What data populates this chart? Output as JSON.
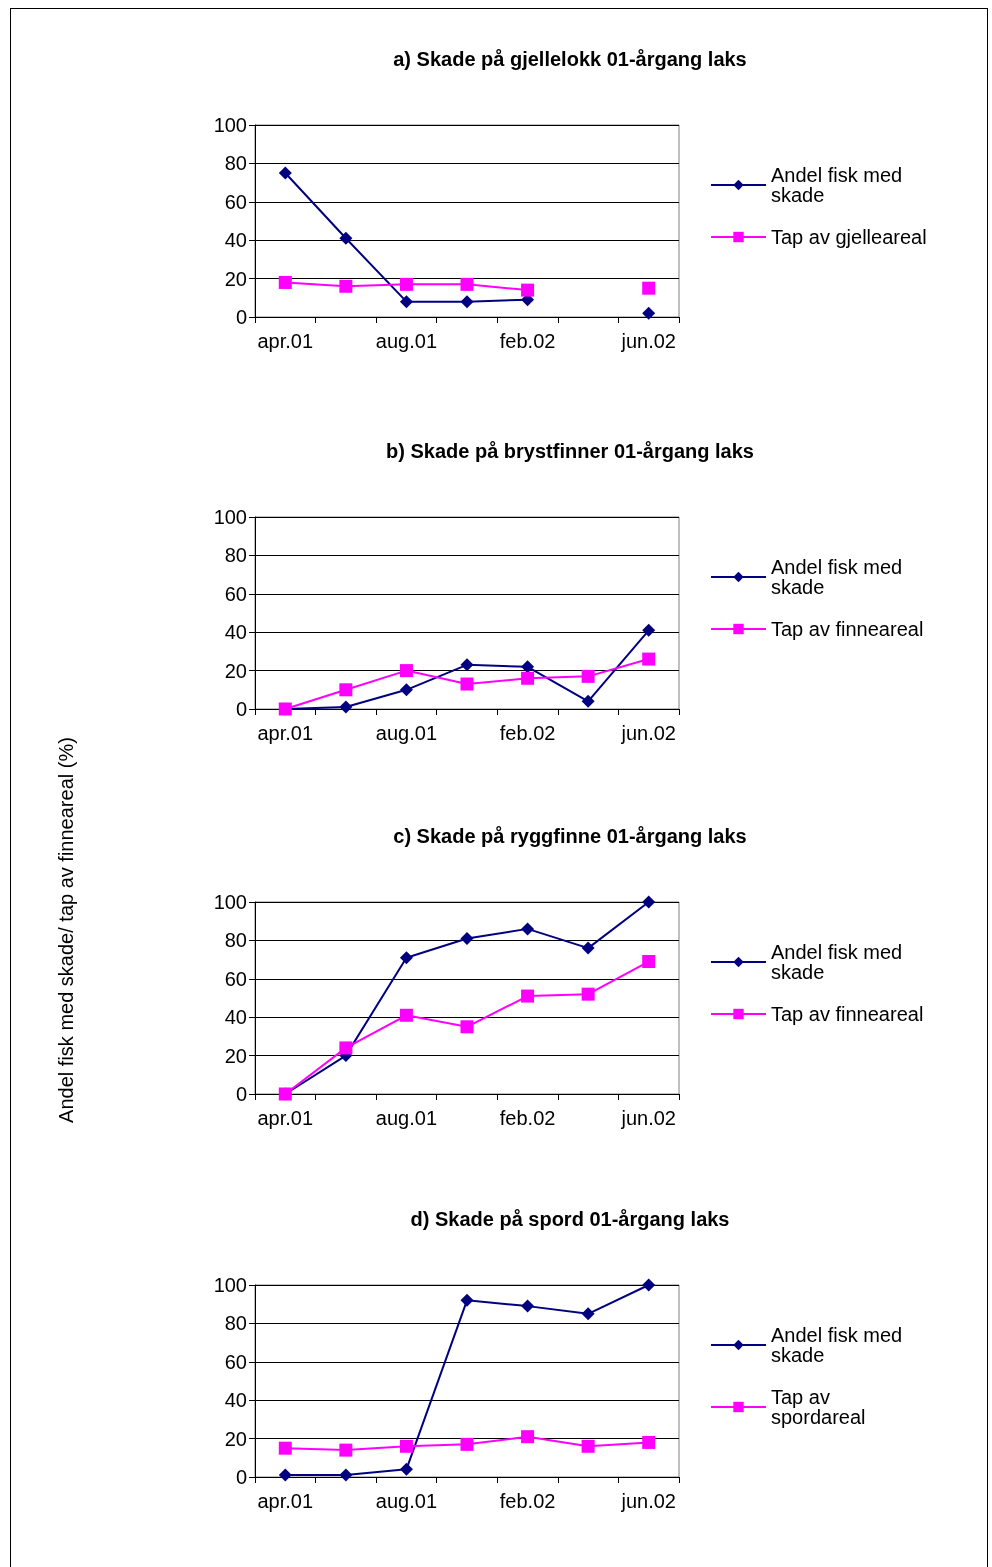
{
  "chart_data": [
    {
      "type": "line",
      "title": "a) Skade på gjellelokk 01-årgang laks",
      "categories": [
        "apr.01",
        null,
        "aug.01",
        null,
        "feb.02",
        null,
        "jun.02"
      ],
      "ylim": [
        0,
        100
      ],
      "yticks": [
        0,
        20,
        40,
        60,
        80,
        100
      ],
      "grid": "y",
      "legend": "right",
      "line_style": "solid",
      "series": [
        {
          "name": "Andel fisk med skade",
          "color": "#000080",
          "marker": "diamond",
          "values": [
            75,
            41,
            8,
            8,
            9,
            null,
            2
          ]
        },
        {
          "name": "Tap av gjelleareal",
          "color": "#ff00ff",
          "marker": "square",
          "values": [
            18,
            16,
            17,
            17,
            14,
            null,
            15
          ]
        }
      ]
    },
    {
      "type": "line",
      "title": "b) Skade på brystfinner 01-årgang laks",
      "categories": [
        "apr.01",
        null,
        "aug.01",
        null,
        "feb.02",
        null,
        "jun.02"
      ],
      "ylim": [
        0,
        100
      ],
      "yticks": [
        0,
        20,
        40,
        60,
        80,
        100
      ],
      "grid": "y",
      "legend": "right",
      "line_style": "solid",
      "series": [
        {
          "name": "Andel fisk med skade",
          "color": "#000080",
          "marker": "diamond",
          "values": [
            0,
            1,
            10,
            23,
            22,
            4,
            41
          ]
        },
        {
          "name": "Tap av finneareal",
          "color": "#ff00ff",
          "marker": "square",
          "values": [
            0,
            10,
            20,
            13,
            16,
            17,
            26
          ]
        }
      ]
    },
    {
      "type": "line",
      "title": "c) Skade på ryggfinne 01-årgang laks",
      "ylabel": "Andel fisk med skade/ tap av finneareal (%)",
      "categories": [
        "apr.01",
        null,
        "aug.01",
        null,
        "feb.02",
        null,
        "jun.02"
      ],
      "ylim": [
        0,
        100
      ],
      "yticks": [
        0,
        20,
        40,
        60,
        80,
        100
      ],
      "grid": "y",
      "legend": "right",
      "line_style": "solid",
      "series": [
        {
          "name": "Andel fisk med skade",
          "color": "#000080",
          "marker": "diamond",
          "values": [
            0,
            20,
            71,
            81,
            86,
            76,
            100
          ]
        },
        {
          "name": "Tap av finneareal",
          "color": "#ff00ff",
          "marker": "square",
          "values": [
            0,
            24,
            41,
            35,
            51,
            52,
            69
          ]
        }
      ]
    },
    {
      "type": "line",
      "title": "d) Skade på spord 01-årgang laks",
      "categories": [
        "apr.01",
        null,
        "aug.01",
        null,
        "feb.02",
        null,
        "jun.02"
      ],
      "ylim": [
        0,
        100
      ],
      "yticks": [
        0,
        20,
        40,
        60,
        80,
        100
      ],
      "grid": "y",
      "legend": "right",
      "line_style": "solid",
      "series": [
        {
          "name": "Andel fisk med skade",
          "color": "#000080",
          "marker": "diamond",
          "values": [
            1,
            1,
            4,
            92,
            89,
            85,
            100
          ]
        },
        {
          "name": "Tap av spordareal",
          "color": "#ff00ff",
          "marker": "square",
          "values": [
            15,
            14,
            16,
            17,
            21,
            16,
            18
          ]
        }
      ]
    }
  ]
}
